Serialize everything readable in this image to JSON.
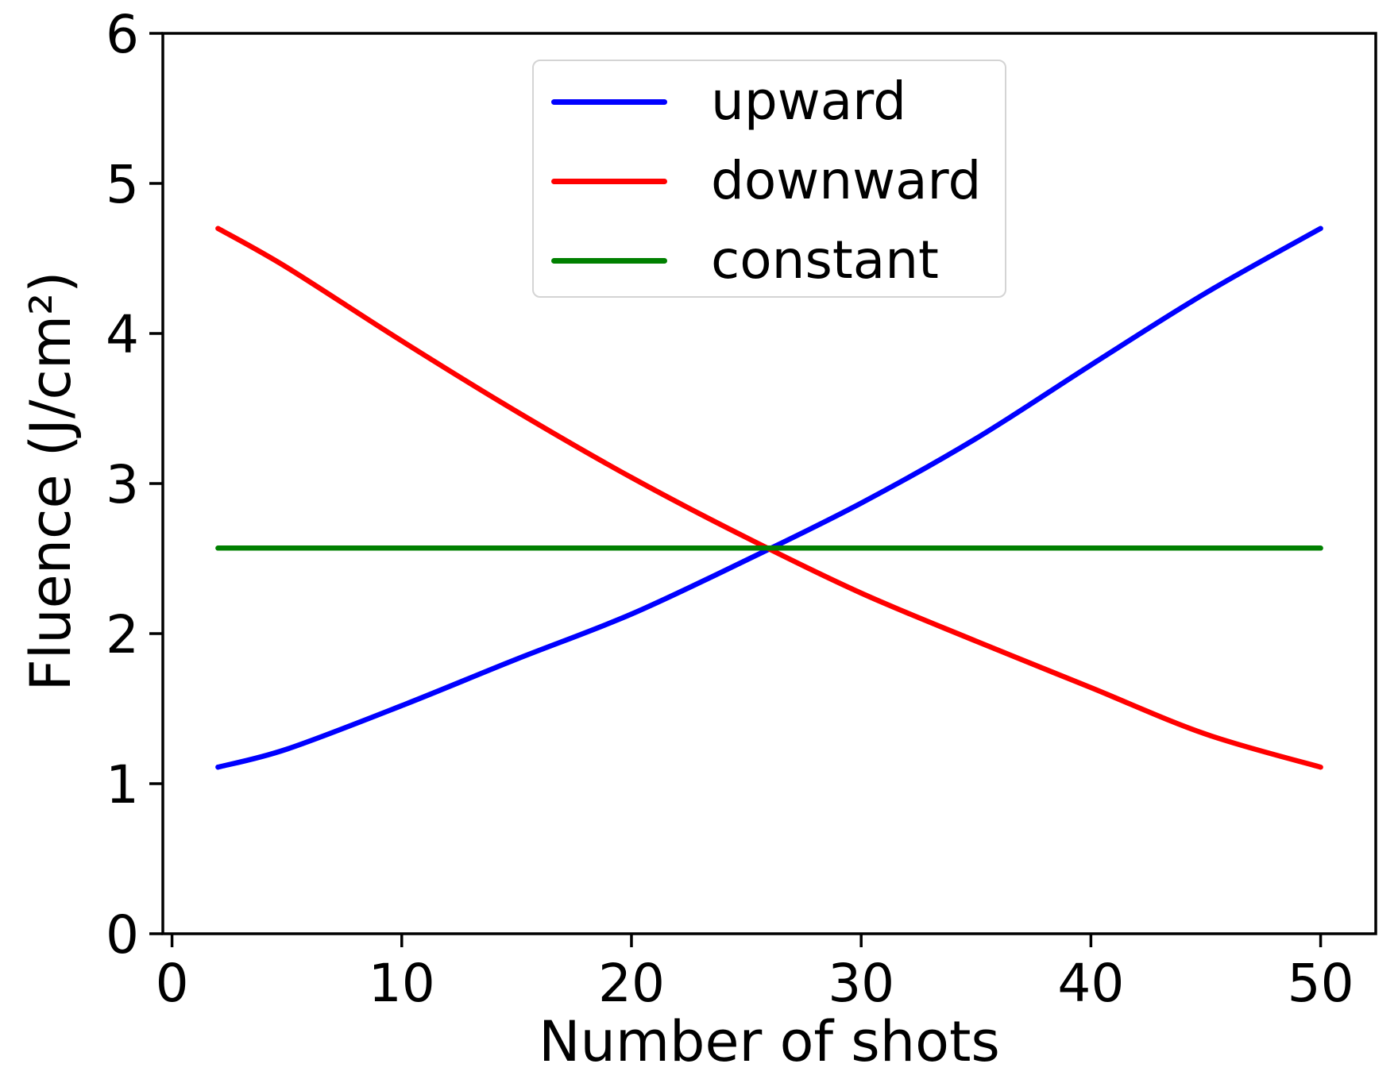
{
  "figure": {
    "background": "#ffffff",
    "text_color": "#000000",
    "spine_color": "#000000"
  },
  "chart_data": {
    "type": "line",
    "title": "",
    "xlabel": "Number of shots",
    "ylabel": "Fluence (J/cm²)",
    "xlim": [
      -0.4,
      52.4
    ],
    "ylim": [
      0,
      6
    ],
    "x_ticks": [
      0,
      10,
      20,
      30,
      40,
      50
    ],
    "y_ticks": [
      0,
      1,
      2,
      3,
      4,
      5,
      6
    ],
    "grid": false,
    "legend_position": "upper center",
    "x": [
      2,
      5,
      10,
      15,
      20,
      25,
      30,
      35,
      40,
      45,
      50
    ],
    "series": [
      {
        "name": "upward",
        "color": "#0000ff",
        "values": [
          1.11,
          1.23,
          1.52,
          1.83,
          2.13,
          2.49,
          2.87,
          3.3,
          3.79,
          4.27,
          4.7
        ]
      },
      {
        "name": "downward",
        "color": "#ff0000",
        "values": [
          4.7,
          4.44,
          3.95,
          3.48,
          3.04,
          2.64,
          2.27,
          1.95,
          1.64,
          1.33,
          1.11
        ]
      },
      {
        "name": "constant",
        "color": "#008000",
        "values": [
          2.57,
          2.57,
          2.57,
          2.57,
          2.57,
          2.57,
          2.57,
          2.57,
          2.57,
          2.57,
          2.57
        ]
      }
    ],
    "crossing_point": {
      "x": 26,
      "y": 2.57
    }
  }
}
